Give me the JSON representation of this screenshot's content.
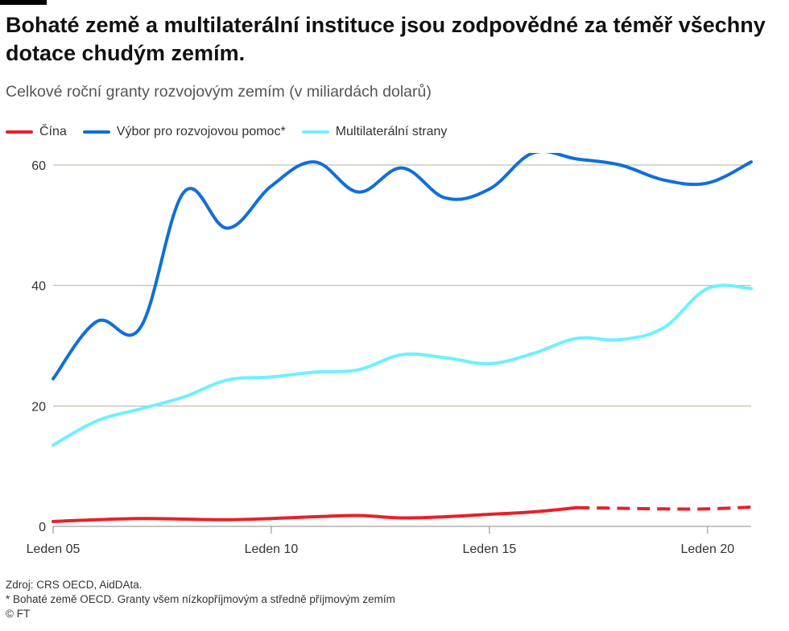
{
  "header": {
    "title": "Bohaté země a multilaterální instituce jsou zodpovědné za téměř všechny dotace chudým zemím.",
    "subtitle": "Celkové roční granty rozvojovým zemím (v miliardách dolarů)"
  },
  "footer": {
    "source": "Zdroj: CRS OECD, AidDAta.",
    "note": "* Bohaté země OECD. Granty všem nízkopříjmovým a středně příjmovým zemím",
    "copyright": "© FT"
  },
  "chart_data": {
    "type": "line",
    "title": "Bohaté země a multilaterální instituce jsou zodpovědné za téměř všechny dotace chudým zemím.",
    "subtitle": "Celkové roční granty rozvojovým zemím (v miliardách dolarů)",
    "x": [
      2005,
      2006,
      2007,
      2008,
      2009,
      2010,
      2011,
      2012,
      2013,
      2014,
      2015,
      2016,
      2017,
      2018,
      2019,
      2020,
      2021
    ],
    "x_ticks": [
      {
        "value": 2005,
        "label": "Leden 05"
      },
      {
        "value": 2010,
        "label": "Leden 10"
      },
      {
        "value": 2015,
        "label": "Leden 15"
      },
      {
        "value": 2020,
        "label": "Leden 20"
      }
    ],
    "xlim": [
      2005,
      2021
    ],
    "ylim": [
      0,
      62
    ],
    "y_ticks": [
      0,
      20,
      40,
      60
    ],
    "grid": "horizontal",
    "legend_position": "top-left",
    "series": [
      {
        "name": "Čína",
        "color": "#e8202a",
        "values": [
          0.8,
          1.1,
          1.3,
          1.2,
          1.1,
          1.3,
          1.6,
          1.8,
          1.4,
          1.6,
          2.0,
          2.4,
          3.1,
          3.0,
          2.9,
          2.9,
          3.2
        ],
        "dashed_from": 2017
      },
      {
        "name": "Výbor pro rozvojovou pomoc*",
        "color": "#0f6fd9",
        "values": [
          24.5,
          34,
          33,
          55.5,
          49.5,
          56.5,
          60.5,
          55.5,
          59.5,
          54.5,
          56,
          62,
          61,
          60,
          57.5,
          57,
          60.5
        ]
      },
      {
        "name": "Multilaterální strany",
        "color": "#6ef0ff",
        "values": [
          13.5,
          17.5,
          19.5,
          21.5,
          24.3,
          24.8,
          25.6,
          26.0,
          28.5,
          28.0,
          27.0,
          28.7,
          31.2,
          31.0,
          33.0,
          39.5,
          39.5
        ]
      }
    ]
  }
}
